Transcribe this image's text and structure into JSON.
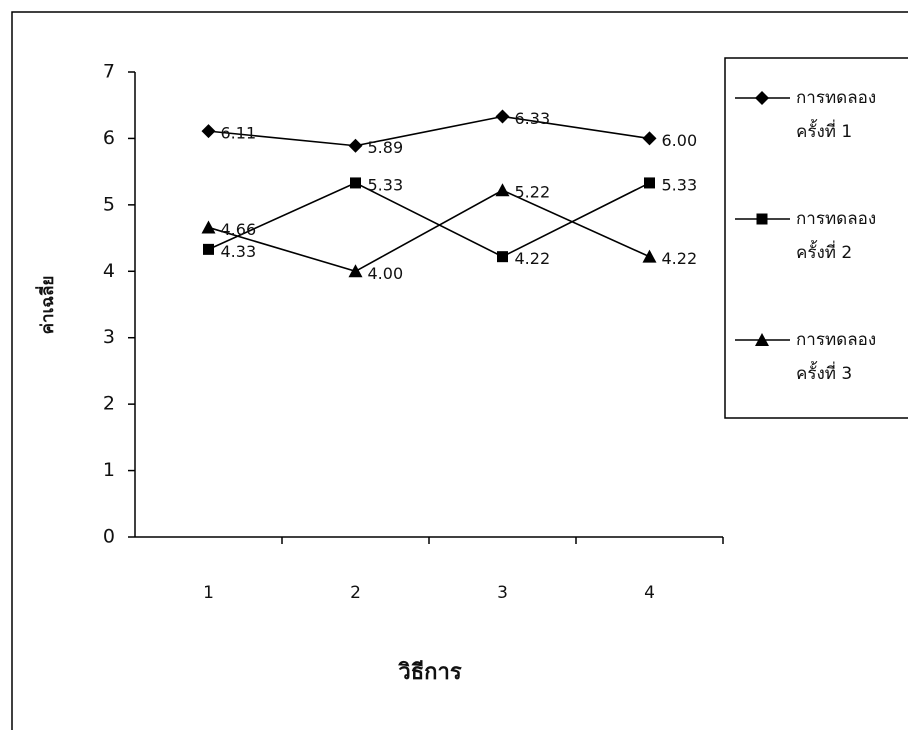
{
  "chart_data": {
    "type": "line",
    "x_label": "วิธีการ",
    "y_label": "ค่าเฉลี่ย",
    "categories": [
      "1",
      "2",
      "3",
      "4"
    ],
    "series": [
      {
        "name": "การทดลอง ครั้งที่ 1",
        "color": "#000000",
        "marker": "diamond",
        "values": [
          6.11,
          5.89,
          6.33,
          6.0
        ],
        "value_labels": [
          "6.11",
          "5.89",
          "6.33",
          "6.00"
        ]
      },
      {
        "name": "การทดลอง ครั้งที่ 2",
        "color": "#000000",
        "marker": "square",
        "values": [
          4.33,
          5.33,
          4.22,
          5.33
        ]
      },
      {
        "name": "การทดลอง ครั้งที่ 3",
        "color": "#000000",
        "marker": "triangle",
        "values": [
          4.66,
          4.0,
          5.22,
          4.22
        ],
        "value_labels": [
          "4.66",
          "4.00",
          "5.22",
          "4.22"
        ]
      }
    ],
    "ylim": [
      0,
      7
    ],
    "yticks": [
      0,
      1,
      2,
      3,
      4,
      5,
      6,
      7
    ],
    "grid": false,
    "legend": "right"
  }
}
